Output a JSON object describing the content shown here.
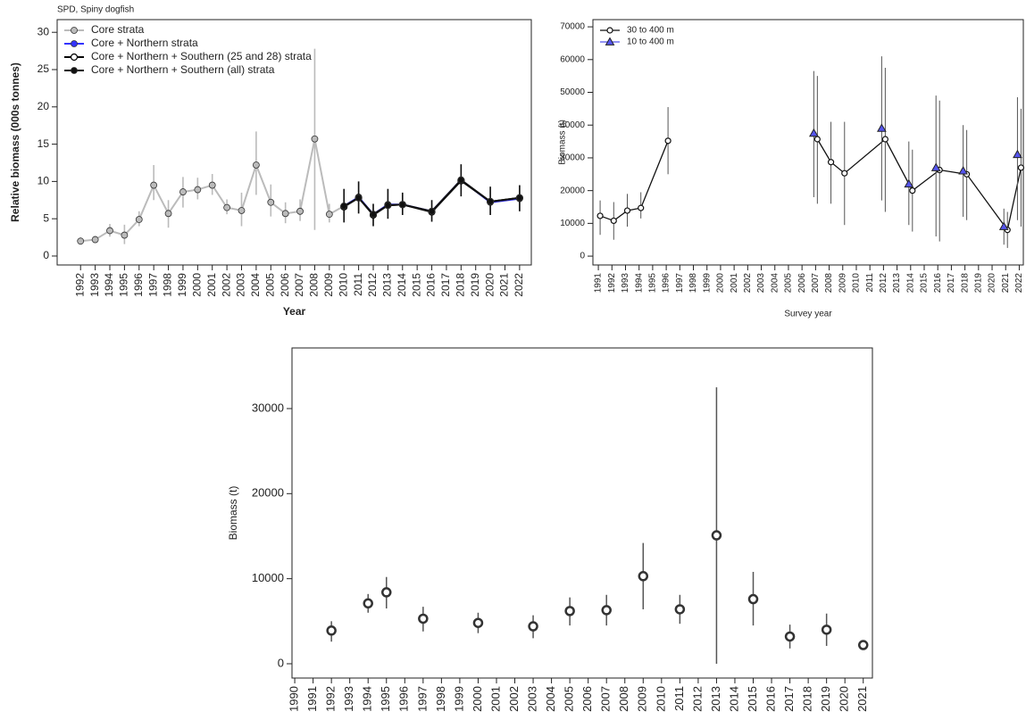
{
  "chart_data": [
    {
      "type": "line",
      "title": "SPD, Spiny dogfish",
      "xlabel": "Year",
      "ylabel": "Relative biomass (000s tonnes)",
      "xlim": [
        1990.4,
        2022.8
      ],
      "ylim": [
        -1.2,
        31.7
      ],
      "xticks": [
        1992,
        1993,
        1994,
        1995,
        1996,
        1997,
        1998,
        1999,
        2000,
        2001,
        2002,
        2003,
        2004,
        2005,
        2006,
        2007,
        2008,
        2009,
        2010,
        2011,
        2012,
        2013,
        2014,
        2015,
        2016,
        2017,
        2018,
        2019,
        2020,
        2021,
        2022
      ],
      "yticks": [
        0,
        5,
        10,
        15,
        20,
        25,
        30
      ],
      "legend": "top-left",
      "series": [
        {
          "name": "Core strata",
          "color": "#bbbbbb",
          "marker": "circle",
          "x": [
            1992,
            1993,
            1994,
            1995,
            1996,
            1997,
            1998,
            1999,
            2000,
            2001,
            2002,
            2003,
            2004,
            2005,
            2006,
            2007,
            2008,
            2009,
            2010,
            2011,
            2012,
            2013,
            2014,
            2016,
            2018,
            2020,
            2022
          ],
          "values": [
            2.0,
            2.2,
            3.4,
            2.8,
            4.9,
            9.5,
            5.7,
            8.6,
            8.9,
            9.5,
            6.5,
            6.1,
            12.2,
            7.2,
            5.7,
            6.0,
            15.7,
            5.6,
            6.7,
            7.8,
            5.6,
            6.8,
            6.9,
            6.0,
            10.2,
            7.3,
            7.8
          ],
          "lower": [
            1.5,
            1.8,
            2.6,
            1.6,
            4.0,
            7.5,
            3.8,
            6.5,
            7.6,
            8.2,
            5.6,
            4.0,
            8.2,
            5.3,
            4.4,
            4.7,
            3.5,
            4.5,
            4.6,
            5.7,
            4.0,
            5.0,
            5.5,
            4.6,
            8.0,
            5.5,
            6.0
          ],
          "upper": [
            2.5,
            2.7,
            4.3,
            4.2,
            6.0,
            12.2,
            7.5,
            10.6,
            10.5,
            11.0,
            7.6,
            8.5,
            16.7,
            9.6,
            7.2,
            7.6,
            27.8,
            7.0,
            9.0,
            10.0,
            7.0,
            9.0,
            8.5,
            7.5,
            12.3,
            9.3,
            9.5
          ]
        },
        {
          "name": "Core + Northern strata",
          "color": "#3333ff",
          "marker": "circle",
          "x": [
            2010,
            2011,
            2012,
            2013,
            2014,
            2016,
            2018,
            2020,
            2022
          ],
          "values": [
            6.7,
            7.9,
            5.6,
            6.9,
            6.9,
            6.0,
            10.2,
            7.2,
            7.7
          ]
        },
        {
          "name": "Core + Northern + Southern (25 and 28) strata",
          "color": "#000000",
          "marker": "open-circle",
          "x": [
            2010,
            2011,
            2012,
            2013,
            2014,
            2016,
            2018,
            2020,
            2022
          ],
          "values": [
            6.6,
            7.8,
            5.5,
            6.8,
            6.9,
            5.9,
            10.1,
            7.3,
            7.8
          ]
        },
        {
          "name": "Core + Northern + Southern (all) strata",
          "color": "#111111",
          "marker": "circle",
          "x": [
            2010,
            2011,
            2012,
            2013,
            2014,
            2016,
            2018,
            2020,
            2022
          ],
          "values": [
            6.7,
            7.8,
            5.6,
            6.8,
            6.9,
            6.0,
            10.2,
            7.3,
            7.8
          ],
          "lower": [
            4.5,
            5.7,
            4.0,
            5.0,
            5.5,
            4.6,
            8.0,
            5.5,
            6.0
          ],
          "upper": [
            9.0,
            10.0,
            7.0,
            9.0,
            8.5,
            7.5,
            12.3,
            9.3,
            9.5
          ]
        }
      ]
    },
    {
      "type": "line",
      "xlabel": "Survey year",
      "ylabel": "Biomass (t)",
      "xlim": [
        1990.6,
        2022.3
      ],
      "ylim": [
        -2700,
        72200
      ],
      "xticks": [
        1991,
        1992,
        1993,
        1994,
        1995,
        1996,
        1997,
        1998,
        1999,
        2000,
        2001,
        2002,
        2003,
        2004,
        2005,
        2006,
        2007,
        2008,
        2009,
        2010,
        2011,
        2012,
        2013,
        2014,
        2015,
        2016,
        2017,
        2018,
        2019,
        2020,
        2021,
        2022
      ],
      "yticks": [
        0,
        10000,
        20000,
        30000,
        40000,
        50000,
        60000,
        70000
      ],
      "legend": "top-left",
      "series": [
        {
          "name": "30 to 400 m",
          "color": "#111111",
          "marker": "open-circle",
          "x": [
            1991,
            1992,
            1993,
            1994,
            1996,
            null,
            2007,
            2008,
            2009,
            2012,
            2014,
            2016,
            2018,
            2021,
            2022
          ],
          "values": [
            12300,
            10800,
            13900,
            14700,
            35200,
            null,
            35700,
            28700,
            25300,
            35700,
            20000,
            26300,
            25000,
            8000,
            27000
          ],
          "lower": [
            6500,
            5000,
            9000,
            11500,
            25000,
            null,
            16000,
            16000,
            9500,
            13500,
            7500,
            4500,
            11000,
            2500,
            9000
          ],
          "upper": [
            17000,
            16500,
            19000,
            19500,
            45500,
            null,
            55000,
            41000,
            41000,
            57500,
            32500,
            47500,
            38500,
            13500,
            45000
          ]
        },
        {
          "name": "10 to 400 m",
          "color": "#5555ee",
          "marker": "triangle",
          "line": false,
          "x": [
            2007,
            2012,
            2014,
            2016,
            2018,
            2021,
            2022
          ],
          "values": [
            37500,
            39000,
            22000,
            27000,
            26000,
            9000,
            31000
          ],
          "lower": [
            18000,
            17000,
            9500,
            6000,
            12000,
            3500,
            11000
          ],
          "upper": [
            56500,
            61000,
            35000,
            49000,
            40000,
            14500,
            48500
          ]
        }
      ]
    },
    {
      "type": "scatter",
      "ylabel": "Biomass (t)",
      "xlim": [
        1989.85,
        2021.5
      ],
      "ylim": [
        -1680,
        37130
      ],
      "xticks": [
        1990,
        1991,
        1992,
        1993,
        1994,
        1995,
        1996,
        1997,
        1998,
        1999,
        2000,
        2001,
        2002,
        2003,
        2004,
        2005,
        2006,
        2007,
        2008,
        2009,
        2010,
        2011,
        2012,
        2013,
        2014,
        2015,
        2016,
        2017,
        2018,
        2019,
        2020,
        2021
      ],
      "yticks": [
        0,
        10000,
        20000,
        30000
      ],
      "color": "#333333",
      "marker": "open-circle",
      "x": [
        1992,
        1994,
        1995,
        1997,
        2000,
        2003,
        2005,
        2007,
        2009,
        2011,
        2013,
        2015,
        2017,
        2019,
        2021
      ],
      "values": [
        3900,
        7100,
        8400,
        5300,
        4800,
        4400,
        6200,
        6300,
        10300,
        6400,
        15100,
        7600,
        3200,
        4000,
        2200
      ],
      "lower": [
        2600,
        6000,
        6500,
        3800,
        3600,
        3000,
        4500,
        4500,
        6400,
        4700,
        0,
        4500,
        1800,
        2100,
        1800
      ],
      "upper": [
        5000,
        8200,
        10200,
        6700,
        6000,
        5700,
        7800,
        8100,
        14200,
        8100,
        32500,
        10800,
        4600,
        5900,
        2600
      ]
    }
  ]
}
